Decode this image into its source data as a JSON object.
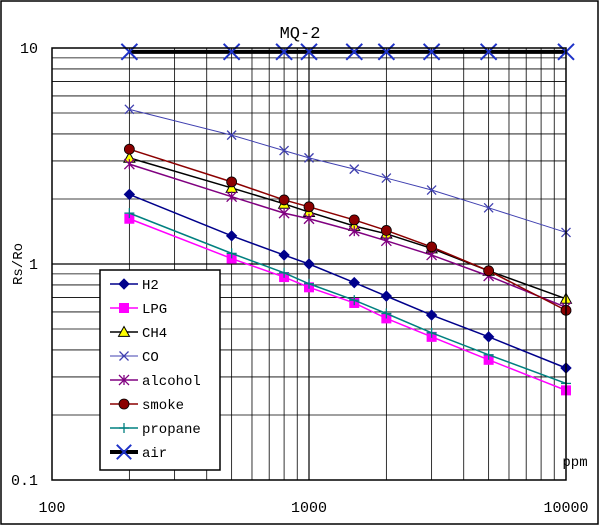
{
  "chart_data": {
    "type": "line",
    "title": "MQ-2",
    "xlabel": "ppm",
    "ylabel": "Rs/Ro",
    "xscale": "log",
    "yscale": "log",
    "xlim": [
      100,
      10000
    ],
    "ylim": [
      0.1,
      10
    ],
    "x_ticks": [
      "100",
      "1000",
      "10000"
    ],
    "y_ticks": [
      "0.1",
      "1",
      "10"
    ],
    "grid": true,
    "legend_position": "inside-left",
    "series": [
      {
        "name": "H2",
        "color": "#00008B",
        "marker": "diamond",
        "line_width": 1.5,
        "points": [
          [
            200,
            2.1
          ],
          [
            500,
            1.35
          ],
          [
            800,
            1.1
          ],
          [
            1000,
            1.0
          ],
          [
            1500,
            0.82
          ],
          [
            2000,
            0.71
          ],
          [
            3000,
            0.58
          ],
          [
            5000,
            0.46
          ],
          [
            10000,
            0.33
          ]
        ]
      },
      {
        "name": "LPG",
        "color": "#FF00FF",
        "marker": "square",
        "line_width": 1.5,
        "points": [
          [
            200,
            1.62
          ],
          [
            500,
            1.06
          ],
          [
            800,
            0.87
          ],
          [
            1000,
            0.78
          ],
          [
            1500,
            0.66
          ],
          [
            2000,
            0.56
          ],
          [
            3000,
            0.46
          ],
          [
            5000,
            0.36
          ],
          [
            10000,
            0.26
          ]
        ]
      },
      {
        "name": "CH4",
        "color": "#000000",
        "marker": "triangle",
        "line_width": 1.5,
        "points": [
          [
            200,
            3.1
          ],
          [
            500,
            2.25
          ],
          [
            800,
            1.9
          ],
          [
            1000,
            1.74
          ],
          [
            1500,
            1.5
          ],
          [
            2000,
            1.38
          ],
          [
            3000,
            1.18
          ],
          [
            5000,
            0.93
          ],
          [
            10000,
            0.69
          ]
        ]
      },
      {
        "name": "CO",
        "color": "#4040B0",
        "marker": "x",
        "line_width": 1,
        "points": [
          [
            200,
            5.2
          ],
          [
            500,
            3.95
          ],
          [
            800,
            3.35
          ],
          [
            1000,
            3.1
          ],
          [
            1500,
            2.75
          ],
          [
            2000,
            2.5
          ],
          [
            3000,
            2.2
          ],
          [
            5000,
            1.82
          ],
          [
            10000,
            1.4
          ]
        ]
      },
      {
        "name": "alcohol",
        "color": "#800080",
        "marker": "asterisk",
        "line_width": 1.5,
        "points": [
          [
            200,
            2.9
          ],
          [
            500,
            2.05
          ],
          [
            800,
            1.72
          ],
          [
            1000,
            1.62
          ],
          [
            1500,
            1.42
          ],
          [
            2000,
            1.28
          ],
          [
            3000,
            1.1
          ],
          [
            5000,
            0.88
          ],
          [
            10000,
            0.63
          ]
        ]
      },
      {
        "name": "smoke",
        "color": "#8B0000",
        "marker": "circle",
        "line_width": 1.5,
        "points": [
          [
            200,
            3.4
          ],
          [
            500,
            2.4
          ],
          [
            800,
            1.98
          ],
          [
            1000,
            1.84
          ],
          [
            1500,
            1.6
          ],
          [
            2000,
            1.43
          ],
          [
            3000,
            1.2
          ],
          [
            5000,
            0.93
          ],
          [
            10000,
            0.61
          ]
        ]
      },
      {
        "name": "propane",
        "color": "#008080",
        "marker": "plus",
        "line_width": 1.5,
        "points": [
          [
            200,
            1.72
          ],
          [
            500,
            1.12
          ],
          [
            800,
            0.91
          ],
          [
            1000,
            0.81
          ],
          [
            1500,
            0.68
          ],
          [
            2000,
            0.59
          ],
          [
            3000,
            0.48
          ],
          [
            5000,
            0.38
          ],
          [
            10000,
            0.28
          ]
        ]
      },
      {
        "name": "air",
        "color": "#000000",
        "marker_color": "#1E32C8",
        "marker": "x-large",
        "line_width": 4,
        "points": [
          [
            200,
            9.6
          ],
          [
            500,
            9.6
          ],
          [
            800,
            9.6
          ],
          [
            1000,
            9.6
          ],
          [
            1500,
            9.6
          ],
          [
            2000,
            9.6
          ],
          [
            3000,
            9.6
          ],
          [
            5000,
            9.6
          ],
          [
            10000,
            9.6
          ]
        ]
      }
    ]
  }
}
